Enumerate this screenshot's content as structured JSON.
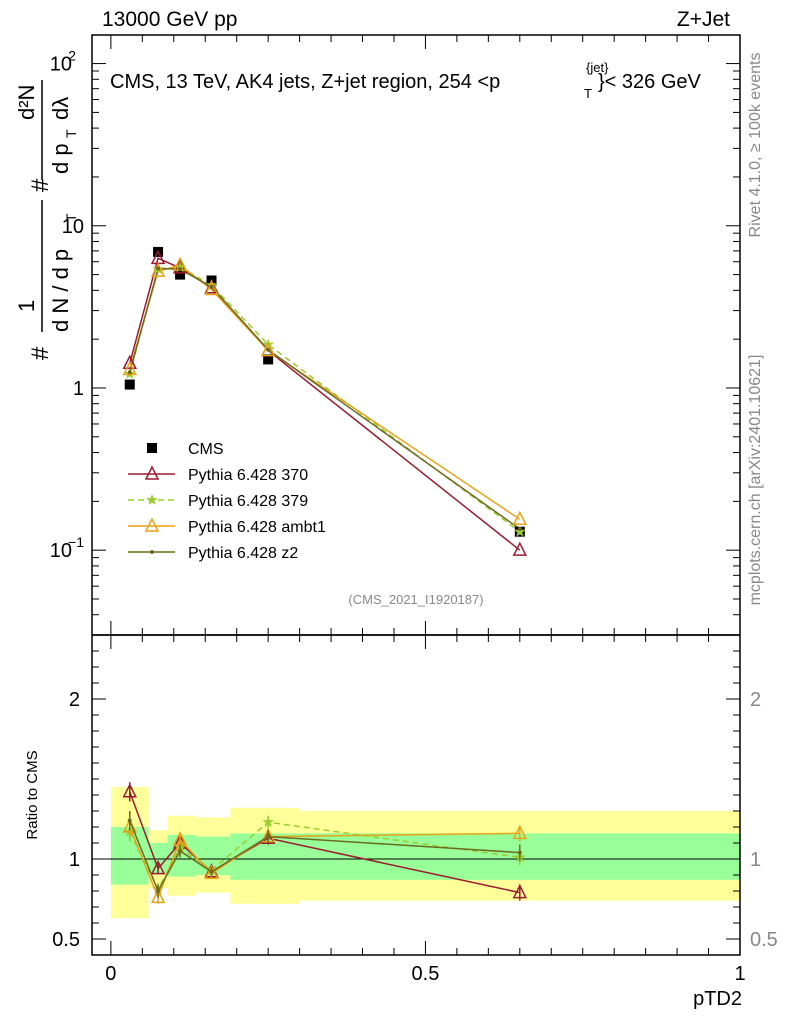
{
  "header": {
    "left": "13000 GeV pp",
    "right": "Z+Jet",
    "plot_title_prefix": "CMS, 13 TeV, AK4 jets, Z+jet region, 254 <p",
    "plot_title_sup": "{jet}",
    "plot_title_sub": "T",
    "plot_title_suffix": "}< 326 GeV",
    "side_top": "Rivet 4.1.0, ≥ 100k events",
    "side_bottom": "mcplots.cern.ch [arXiv:2401.10621]",
    "analysis_id": "(CMS_2021_I1920187)"
  },
  "ylabel_main": {
    "hash1": "#",
    "one": "1",
    "dN": "d N / d p",
    "T1": "T",
    "hash2": "#",
    "dpT": "d p",
    "T2": "T",
    "d2N": "d²N",
    "dlambda": "dλ",
    "hash3": "#"
  },
  "chart_data": [
    {
      "type": "line",
      "panel": "main",
      "yscale": "log",
      "ylim": [
        0.03,
        150
      ],
      "xlim": [
        -0.03,
        1.0
      ],
      "ytick_labels": [
        {
          "value": 0.1,
          "base": "10",
          "exp": "−1"
        },
        {
          "value": 1,
          "base": "1",
          "exp": ""
        },
        {
          "value": 10,
          "base": "10",
          "exp": ""
        },
        {
          "value": 100,
          "base": "10",
          "exp": "2"
        }
      ],
      "x": [
        0.03,
        0.075,
        0.11,
        0.16,
        0.25,
        0.65
      ],
      "series": [
        {
          "name": "CMS",
          "color": "#000000",
          "marker": "square",
          "values": [
            1.05,
            6.9,
            5.0,
            4.6,
            1.5,
            0.13
          ]
        },
        {
          "name": "Pythia 6.428 370",
          "color": "#9b1b30",
          "marker": "triangle-open",
          "dash": "",
          "values": [
            1.42,
            6.3,
            5.5,
            4.15,
            1.7,
            0.1
          ]
        },
        {
          "name": "Pythia 6.428 379",
          "color": "#9acd32",
          "marker": "star",
          "dash": "6,4",
          "values": [
            1.22,
            5.4,
            5.55,
            4.3,
            1.85,
            0.13
          ]
        },
        {
          "name": "Pythia 6.428 ambt1",
          "color": "#e8a317",
          "marker": "triangle-open",
          "dash": "",
          "values": [
            1.3,
            5.25,
            5.7,
            4.05,
            1.7,
            0.155
          ]
        },
        {
          "name": "Pythia 6.428 z2",
          "color": "#6b6b1e",
          "marker": "dot",
          "dash": "",
          "values": [
            1.25,
            5.45,
            5.4,
            4.2,
            1.72,
            0.135
          ]
        }
      ]
    },
    {
      "type": "line",
      "panel": "ratio",
      "ylabel": "Ratio to CMS",
      "xlabel": "pTD2",
      "ylim": [
        0.4,
        2.4
      ],
      "yticks": [
        0.5,
        1,
        2
      ],
      "ytick_labels": [
        "0.5",
        "1",
        "2"
      ],
      "xticks": [
        0,
        0.5,
        1
      ],
      "xtick_labels": [
        "0",
        "0.5",
        "1"
      ],
      "bands": [
        {
          "x0": 0.0,
          "x1": 0.06,
          "inner": [
            0.84,
            1.2
          ],
          "outer": [
            0.63,
            1.45
          ]
        },
        {
          "x0": 0.06,
          "x1": 0.09,
          "inner": [
            0.91,
            1.1
          ],
          "outer": [
            0.82,
            1.18
          ]
        },
        {
          "x0": 0.09,
          "x1": 0.135,
          "inner": [
            0.89,
            1.15
          ],
          "outer": [
            0.77,
            1.27
          ]
        },
        {
          "x0": 0.135,
          "x1": 0.19,
          "inner": [
            0.9,
            1.14
          ],
          "outer": [
            0.79,
            1.26
          ]
        },
        {
          "x0": 0.19,
          "x1": 0.3,
          "inner": [
            0.87,
            1.16
          ],
          "outer": [
            0.72,
            1.32
          ]
        },
        {
          "x0": 0.3,
          "x1": 1.0,
          "inner": [
            0.87,
            1.16
          ],
          "outer": [
            0.74,
            1.3
          ]
        }
      ],
      "x": [
        0.03,
        0.075,
        0.11,
        0.16,
        0.25,
        0.65
      ],
      "series": [
        {
          "name": "Pythia 6.428 370",
          "color": "#9b1b30",
          "values": [
            1.42,
            0.94,
            1.1,
            0.92,
            1.13,
            0.79
          ],
          "errors": [
            0.06,
            0.03,
            0.04,
            0.03,
            0.04,
            0.05
          ]
        },
        {
          "name": "Pythia 6.428 379",
          "color": "#9acd32",
          "values": [
            1.17,
            0.81,
            1.07,
            0.93,
            1.23,
            1.01
          ],
          "errors": [
            0.06,
            0.04,
            0.04,
            0.03,
            0.04,
            0.05
          ]
        },
        {
          "name": "Pythia 6.428 ambt1",
          "color": "#e8a317",
          "values": [
            1.2,
            0.76,
            1.12,
            0.91,
            1.14,
            1.16
          ],
          "errors": [
            0.07,
            0.04,
            0.04,
            0.03,
            0.04,
            0.05
          ]
        },
        {
          "name": "Pythia 6.428 z2",
          "color": "#6b6b1e",
          "values": [
            1.24,
            0.8,
            1.05,
            0.92,
            1.14,
            1.04
          ],
          "errors": [
            0.06,
            0.04,
            0.04,
            0.03,
            0.04,
            0.05
          ]
        }
      ]
    }
  ]
}
